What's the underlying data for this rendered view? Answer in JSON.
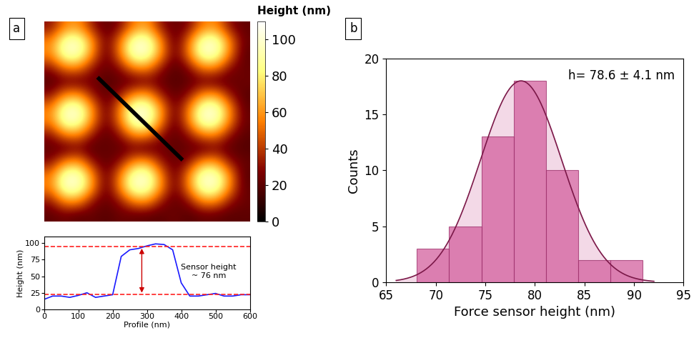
{
  "chart_data": [
    {
      "type": "heatmap",
      "panel_label": "a",
      "cells": [
        [
          30,
          56,
          61,
          33,
          20,
          28,
          55,
          63,
          31,
          22,
          27,
          54,
          59,
          30,
          21
        ],
        [
          55,
          95,
          98,
          60,
          22,
          52,
          97,
          100,
          58,
          19,
          50,
          96,
          99,
          57,
          23
        ],
        [
          57,
          97,
          96,
          58,
          19,
          54,
          99,
          98,
          60,
          21,
          53,
          98,
          97,
          55,
          20
        ],
        [
          31,
          54,
          58,
          30,
          23,
          29,
          57,
          60,
          32,
          18,
          28,
          55,
          57,
          29,
          22
        ],
        [
          18,
          23,
          20,
          25,
          17,
          21,
          19,
          24,
          22,
          18,
          20,
          23,
          19,
          21,
          24
        ],
        [
          29,
          55,
          60,
          31,
          21,
          30,
          58,
          62,
          33,
          20,
          29,
          56,
          61,
          32,
          19
        ],
        [
          54,
          96,
          99,
          59,
          20,
          55,
          98,
          101,
          61,
          22,
          52,
          97,
          100,
          58,
          21
        ],
        [
          56,
          98,
          97,
          57,
          22,
          53,
          100,
          99,
          59,
          19,
          54,
          99,
          98,
          56,
          23
        ],
        [
          30,
          56,
          59,
          32,
          19,
          31,
          59,
          61,
          30,
          21,
          30,
          55,
          58,
          31,
          20
        ],
        [
          21,
          19,
          24,
          18,
          22,
          20,
          23,
          17,
          25,
          19,
          22,
          18,
          24,
          20,
          18
        ],
        [
          28,
          54,
          60,
          30,
          20,
          29,
          56,
          61,
          31,
          23,
          28,
          57,
          60,
          30,
          22
        ],
        [
          53,
          97,
          99,
          58,
          21,
          54,
          96,
          100,
          57,
          20,
          55,
          98,
          99,
          59,
          19
        ],
        [
          55,
          99,
          98,
          60,
          19,
          56,
          98,
          97,
          59,
          22,
          54,
          97,
          98,
          57,
          21
        ],
        [
          31,
          57,
          58,
          29,
          22,
          30,
          55,
          59,
          32,
          20,
          29,
          56,
          57,
          31,
          23
        ],
        [
          20,
          24,
          19,
          22,
          18,
          23,
          21,
          20,
          19,
          24,
          18,
          22,
          21,
          19,
          20
        ]
      ],
      "colorbar": {
        "label": "Height (nm)",
        "range": [
          0,
          110
        ],
        "ticks": [
          0,
          20,
          40,
          60,
          80,
          100
        ]
      },
      "profile_line": {
        "x": [
          3.5,
          9.5
        ],
        "y": [
          3.8,
          9.8
        ],
        "color": "#000000"
      },
      "tick_labels": false
    },
    {
      "type": "line",
      "x": [
        0,
        25,
        50,
        75,
        100,
        125,
        150,
        175,
        200,
        225,
        250,
        275,
        300,
        325,
        350,
        375,
        400,
        425,
        450,
        475,
        500,
        525,
        550,
        575,
        600
      ],
      "values": [
        15,
        20,
        20,
        18,
        21,
        25,
        18,
        20,
        22,
        80,
        90,
        92,
        96,
        99,
        98,
        90,
        40,
        20,
        20,
        22,
        24,
        20,
        20,
        22,
        22
      ],
      "color": "#1a1aff",
      "xlim": [
        0,
        600
      ],
      "xticks": [
        0,
        100,
        200,
        300,
        400,
        500,
        600
      ],
      "ylim": [
        0,
        110
      ],
      "yticks": [
        0,
        25,
        50,
        75,
        100
      ],
      "x_label": "Profile (nm)",
      "y_label": "Height (nm)",
      "reference_lines": {
        "values": [
          22,
          95
        ],
        "color": "#ff2020",
        "line_style": "dashed"
      },
      "annotations": [
        {
          "text": "Sensor height\n~ 76 nm",
          "x": 285,
          "y": [
            22,
            95
          ],
          "color": "#cc0000"
        }
      ]
    },
    {
      "type": "histogram",
      "panel_label": "b",
      "bins": [
        68.1,
        71.35,
        74.6,
        77.85,
        81.1,
        84.35,
        87.6,
        90.85
      ],
      "counts": [
        3,
        5,
        13,
        18,
        10,
        2,
        2
      ],
      "color": "#d4609e",
      "fit": {
        "mean": 78.6,
        "sigma": 4.1,
        "amplitude": 18,
        "range": [
          66,
          92
        ],
        "color": "#7b1848"
      },
      "annotations": [
        "h= 78.6 ± 4.1 nm"
      ],
      "xlim": [
        65,
        95
      ],
      "xticks": [
        65,
        70,
        75,
        80,
        85,
        90,
        95
      ],
      "ylim": [
        0,
        20
      ],
      "yticks": [
        0,
        5,
        10,
        15,
        20
      ],
      "x_label": "Force sensor height (nm)",
      "y_label": "Counts"
    }
  ]
}
